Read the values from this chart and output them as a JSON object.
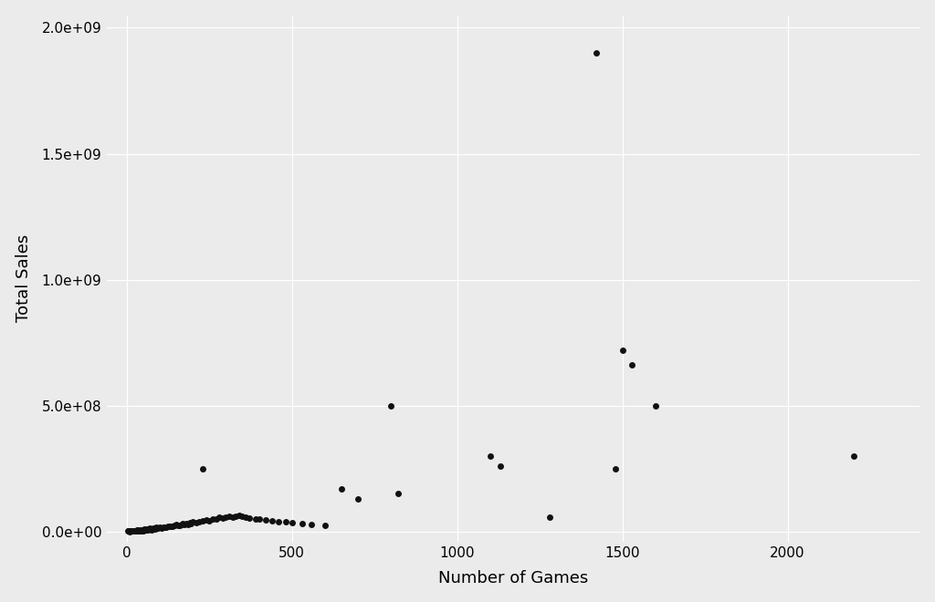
{
  "points": [
    [
      3,
      2000000
    ],
    [
      5,
      1000000
    ],
    [
      7,
      500000
    ],
    [
      8,
      300000
    ],
    [
      10,
      2000000
    ],
    [
      12,
      1000000
    ],
    [
      15,
      3000000
    ],
    [
      17,
      2000000
    ],
    [
      20,
      1500000
    ],
    [
      22,
      4000000
    ],
    [
      25,
      2500000
    ],
    [
      27,
      1000000
    ],
    [
      30,
      5000000
    ],
    [
      32,
      3000000
    ],
    [
      35,
      7000000
    ],
    [
      38,
      2000000
    ],
    [
      40,
      4000000
    ],
    [
      42,
      6000000
    ],
    [
      45,
      3000000
    ],
    [
      47,
      5000000
    ],
    [
      50,
      4000000
    ],
    [
      52,
      8000000
    ],
    [
      55,
      6000000
    ],
    [
      58,
      5000000
    ],
    [
      60,
      9000000
    ],
    [
      63,
      7000000
    ],
    [
      65,
      10000000
    ],
    [
      68,
      8000000
    ],
    [
      70,
      12000000
    ],
    [
      73,
      9000000
    ],
    [
      75,
      6000000
    ],
    [
      78,
      11000000
    ],
    [
      80,
      13000000
    ],
    [
      85,
      10000000
    ],
    [
      88,
      15000000
    ],
    [
      90,
      12000000
    ],
    [
      95,
      14000000
    ],
    [
      100,
      16000000
    ],
    [
      105,
      13000000
    ],
    [
      110,
      18000000
    ],
    [
      115,
      15000000
    ],
    [
      120,
      17000000
    ],
    [
      125,
      20000000
    ],
    [
      130,
      22000000
    ],
    [
      135,
      19000000
    ],
    [
      140,
      21000000
    ],
    [
      145,
      24000000
    ],
    [
      150,
      26000000
    ],
    [
      155,
      23000000
    ],
    [
      160,
      25000000
    ],
    [
      165,
      28000000
    ],
    [
      170,
      30000000
    ],
    [
      175,
      27000000
    ],
    [
      180,
      32000000
    ],
    [
      185,
      29000000
    ],
    [
      190,
      35000000
    ],
    [
      195,
      33000000
    ],
    [
      200,
      38000000
    ],
    [
      210,
      36000000
    ],
    [
      220,
      40000000
    ],
    [
      230,
      42000000
    ],
    [
      240,
      45000000
    ],
    [
      250,
      43000000
    ],
    [
      260,
      48000000
    ],
    [
      270,
      50000000
    ],
    [
      280,
      55000000
    ],
    [
      290,
      52000000
    ],
    [
      300,
      58000000
    ],
    [
      310,
      60000000
    ],
    [
      320,
      55000000
    ],
    [
      330,
      62000000
    ],
    [
      340,
      65000000
    ],
    [
      350,
      60000000
    ],
    [
      360,
      58000000
    ],
    [
      370,
      52000000
    ],
    [
      390,
      50000000
    ],
    [
      400,
      48000000
    ],
    [
      420,
      45000000
    ],
    [
      440,
      42000000
    ],
    [
      460,
      40000000
    ],
    [
      480,
      38000000
    ],
    [
      500,
      35000000
    ],
    [
      530,
      30000000
    ],
    [
      560,
      28000000
    ],
    [
      600,
      25000000
    ],
    [
      230,
      250000000
    ],
    [
      650,
      170000000
    ],
    [
      700,
      130000000
    ],
    [
      800,
      500000000
    ],
    [
      820,
      150000000
    ],
    [
      1100,
      300000000
    ],
    [
      1130,
      260000000
    ],
    [
      1280,
      55000000
    ],
    [
      1420,
      1900000000
    ],
    [
      1480,
      250000000
    ],
    [
      1500,
      720000000
    ],
    [
      1530,
      660000000
    ],
    [
      1600,
      500000000
    ],
    [
      2200,
      300000000
    ]
  ],
  "xlabel": "Number of Games",
  "ylabel": "Total Sales",
  "background_color": "#EBEBEB",
  "point_color": "#111111",
  "point_size": 25,
  "xlim": [
    -60,
    2400
  ],
  "ylim": [
    -40000000.0,
    2050000000.0
  ],
  "grid_color": "#ffffff",
  "label_fontsize": 13,
  "tick_fontsize": 11,
  "yticks": [
    0,
    500000000,
    1000000000,
    1500000000,
    2000000000
  ],
  "xticks": [
    0,
    500,
    1000,
    1500,
    2000
  ]
}
